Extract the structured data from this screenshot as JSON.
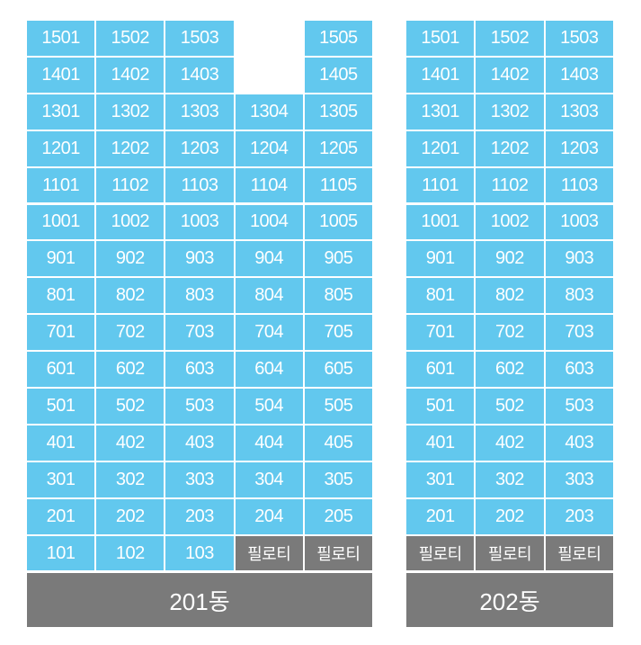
{
  "buildings": [
    {
      "name": "201동",
      "rows": [
        [
          "1501",
          "1502",
          "1503",
          null,
          "1505"
        ],
        [
          "1401",
          "1402",
          "1403",
          null,
          "1405"
        ],
        [
          "1301",
          "1302",
          "1303",
          "1304",
          "1305"
        ],
        [
          "1201",
          "1202",
          "1203",
          "1204",
          "1205"
        ],
        [
          "1101",
          "1102",
          "1103",
          "1104",
          "1105"
        ],
        [
          "1001",
          "1002",
          "1003",
          "1004",
          "1005"
        ],
        [
          "901",
          "902",
          "903",
          "904",
          "905"
        ],
        [
          "801",
          "802",
          "803",
          "804",
          "805"
        ],
        [
          "701",
          "702",
          "703",
          "704",
          "705"
        ],
        [
          "601",
          "602",
          "603",
          "604",
          "605"
        ],
        [
          "501",
          "502",
          "503",
          "504",
          "505"
        ],
        [
          "401",
          "402",
          "403",
          "404",
          "405"
        ],
        [
          "301",
          "302",
          "303",
          "304",
          "305"
        ],
        [
          "201",
          "202",
          "203",
          "204",
          "205"
        ],
        [
          "101",
          "102",
          "103",
          "필로티",
          "필로티"
        ]
      ]
    },
    {
      "name": "202동",
      "rows": [
        [
          "1501",
          "1502",
          "1503"
        ],
        [
          "1401",
          "1402",
          "1403"
        ],
        [
          "1301",
          "1302",
          "1303"
        ],
        [
          "1201",
          "1202",
          "1203"
        ],
        [
          "1101",
          "1102",
          "1103"
        ],
        [
          "1001",
          "1002",
          "1003"
        ],
        [
          "901",
          "902",
          "903"
        ],
        [
          "801",
          "802",
          "803"
        ],
        [
          "701",
          "702",
          "703"
        ],
        [
          "601",
          "602",
          "603"
        ],
        [
          "501",
          "502",
          "503"
        ],
        [
          "401",
          "402",
          "403"
        ],
        [
          "301",
          "302",
          "303"
        ],
        [
          "201",
          "202",
          "203"
        ],
        [
          "필로티",
          "필로티",
          "필로티"
        ]
      ]
    }
  ]
}
